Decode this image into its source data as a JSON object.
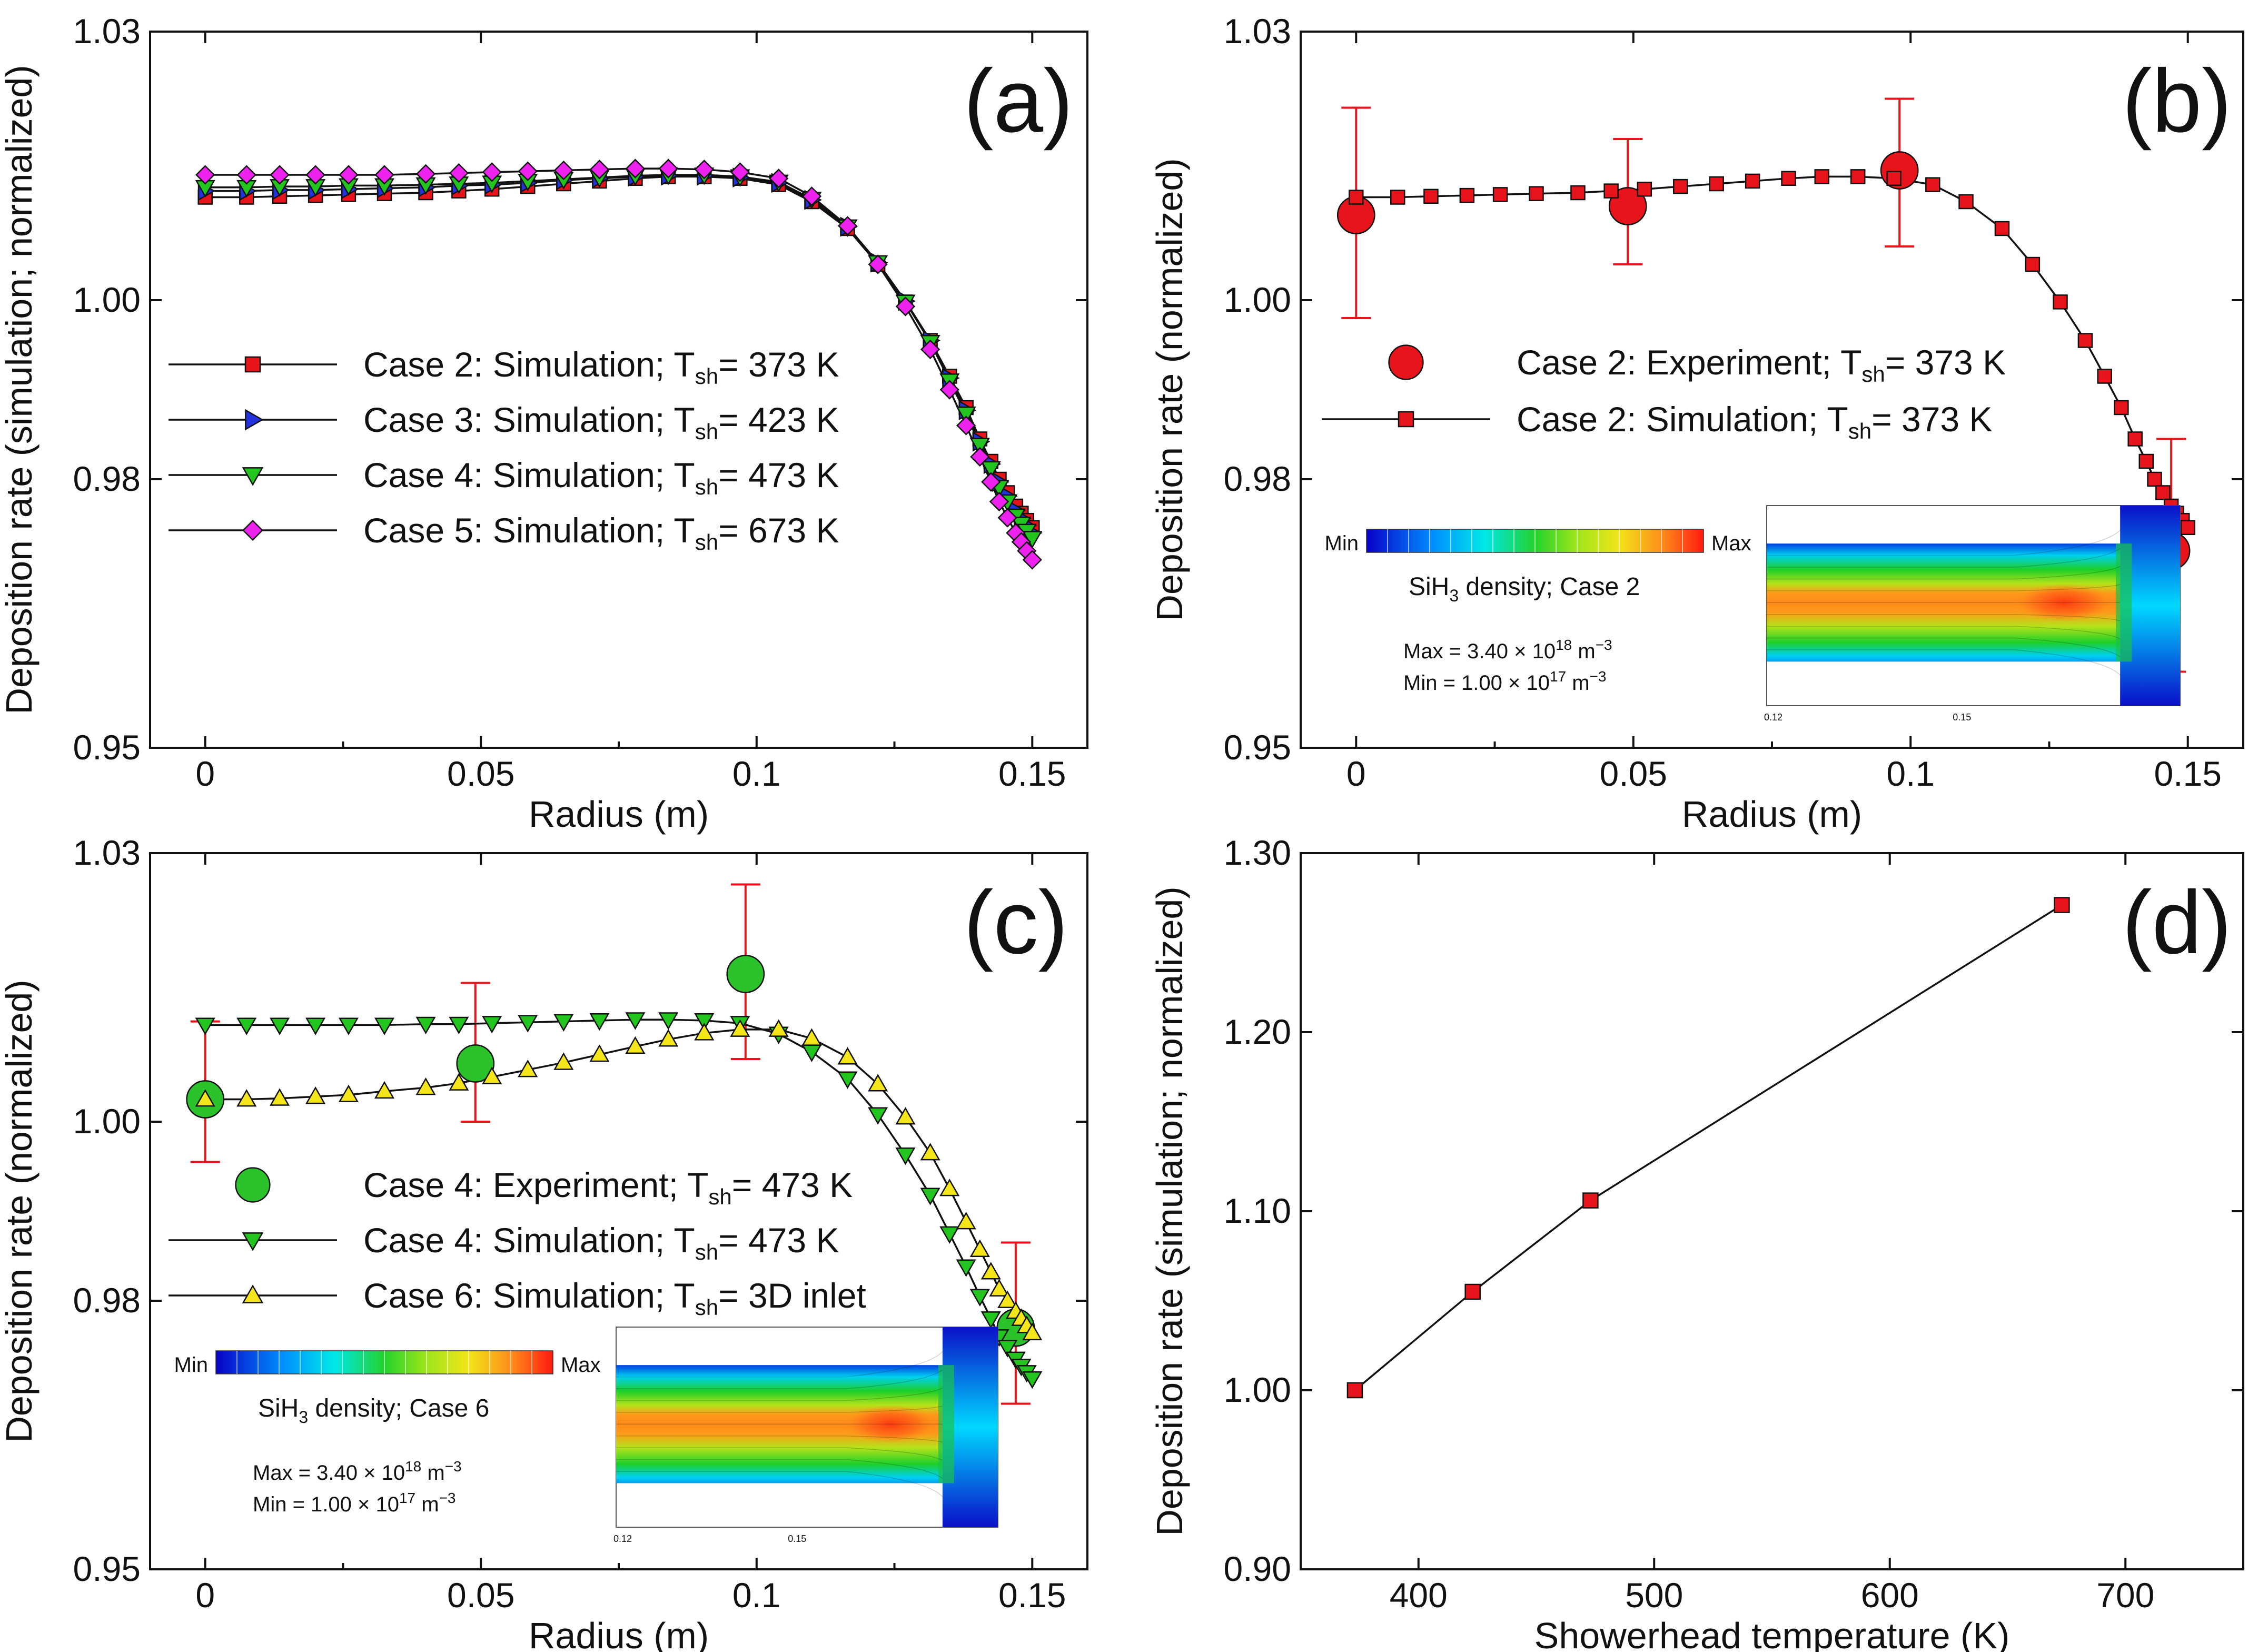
{
  "figure": {
    "panels": [
      {
        "id": "a",
        "label": "(a)",
        "ylabel": "Deposition rate (simulation; normalized)",
        "xlabel": "Radius (m)",
        "x_ticks": [
          "0",
          "0.05",
          "0.1",
          "0.15"
        ],
        "y_ticks": [
          "0.95",
          "0.98",
          "1.00",
          "1.03"
        ],
        "legend": [
          {
            "prefix": "Case 2: Simulation; T",
            "sub": "sh",
            "suffix": "= 373 K"
          },
          {
            "prefix": "Case 3: Simulation; T",
            "sub": "sh",
            "suffix": "= 423 K"
          },
          {
            "prefix": "Case 4: Simulation; T",
            "sub": "sh",
            "suffix": "= 473 K"
          },
          {
            "prefix": "Case 5: Simulation; T",
            "sub": "sh",
            "suffix": "= 673 K"
          }
        ]
      },
      {
        "id": "b",
        "label": "(b)",
        "ylabel": "Deposition rate (normalized)",
        "xlabel": "Radius (m)",
        "x_ticks": [
          "0",
          "0.05",
          "0.1",
          "0.15"
        ],
        "y_ticks": [
          "0.95",
          "0.98",
          "1.00",
          "1.03"
        ],
        "legend": [
          {
            "prefix": "Case 2: Experiment; T",
            "sub": "sh",
            "suffix": "= 373 K"
          },
          {
            "prefix": "Case 2: Simulation; T",
            "sub": "sh",
            "suffix": "= 373 K"
          }
        ],
        "inset": {
          "colorbar_min": "Min",
          "colorbar_max": "Max",
          "title_prefix": "SiH",
          "title_sub": "3",
          "title_suffix": " density; Case 2",
          "max_prefix": "Max = 3.40 × 10",
          "max_sup": "18",
          "max_suffix": " m",
          "max_unit_sup": "−3",
          "min_prefix": "Min = 1.00 × 10",
          "min_sup": "17",
          "min_suffix": " m",
          "min_unit_sup": "−3",
          "tick_left": "0.12",
          "tick_right": "0.15"
        }
      },
      {
        "id": "c",
        "label": "(c)",
        "ylabel": "Deposition rate (normalized)",
        "xlabel": "Radius (m)",
        "x_ticks": [
          "0",
          "0.05",
          "0.1",
          "0.15"
        ],
        "y_ticks": [
          "0.95",
          "0.98",
          "1.00",
          "1.03"
        ],
        "legend": [
          {
            "prefix": "Case 4: Experiment; T",
            "sub": "sh",
            "suffix": "= 473 K"
          },
          {
            "prefix": "Case 4: Simulation; T",
            "sub": "sh",
            "suffix": "= 473 K"
          },
          {
            "prefix": "Case 6: Simulation; T",
            "sub": "sh",
            "suffix": "= 3D inlet"
          }
        ],
        "inset": {
          "colorbar_min": "Min",
          "colorbar_max": "Max",
          "title_prefix": "SiH",
          "title_sub": "3",
          "title_suffix": " density; Case 6",
          "max_prefix": "Max = 3.40 × 10",
          "max_sup": "18",
          "max_suffix": " m",
          "max_unit_sup": "−3",
          "min_prefix": "Min = 1.00 × 10",
          "min_sup": "17",
          "min_suffix": " m",
          "min_unit_sup": "−3",
          "tick_left": "0.12",
          "tick_right": "0.15"
        }
      },
      {
        "id": "d",
        "label": "(d)",
        "ylabel": "Deposition rate (simulation; normalized)",
        "xlabel": "Showerhead temperature (K)",
        "x_ticks": [
          "400",
          "500",
          "600",
          "700"
        ],
        "y_ticks": [
          "0.90",
          "1.00",
          "1.10",
          "1.20",
          "1.30"
        ]
      }
    ],
    "colors": {
      "case2": "#e8141b",
      "case3": "#2233dd",
      "case4": "#22c41e",
      "case5": "#ee22ee",
      "case6": "#f5e61c",
      "exp": "#2bc22b",
      "errorbar": "#e8141b",
      "line": "#111111"
    }
  },
  "chart_data": [
    {
      "type": "line",
      "panel": "a",
      "xlim": [
        -0.01,
        0.16
      ],
      "ylim": [
        0.95,
        1.03
      ],
      "series": [
        {
          "name": "Case 2: Simulation; Tsh= 373 K",
          "marker": "square",
          "x": [
            0,
            0.0075,
            0.0135,
            0.02,
            0.026,
            0.0325,
            0.04,
            0.046,
            0.052,
            0.0585,
            0.065,
            0.0715,
            0.078,
            0.084,
            0.0905,
            0.097,
            0.104,
            0.11,
            0.1165,
            0.122,
            0.127,
            0.1315,
            0.135,
            0.138,
            0.1405,
            0.1425,
            0.144,
            0.1455,
            0.147,
            0.148,
            0.149,
            0.15
          ],
          "y": [
            1.0115,
            1.0115,
            1.0116,
            1.0117,
            1.0118,
            1.0119,
            1.012,
            1.0122,
            1.0124,
            1.0127,
            1.013,
            1.0133,
            1.0136,
            1.0138,
            1.0138,
            1.0136,
            1.0129,
            1.011,
            1.008,
            1.004,
            0.9998,
            0.9955,
            0.9915,
            0.988,
            0.9845,
            0.982,
            0.98,
            0.9785,
            0.977,
            0.9762,
            0.9754,
            0.9746
          ]
        },
        {
          "name": "Case 3: Simulation; Tsh= 423 K",
          "marker": "triangle-right",
          "x": [
            0,
            0.0075,
            0.0135,
            0.02,
            0.026,
            0.0325,
            0.04,
            0.046,
            0.052,
            0.0585,
            0.065,
            0.0715,
            0.078,
            0.084,
            0.0905,
            0.097,
            0.104,
            0.11,
            0.1165,
            0.122,
            0.127,
            0.1315,
            0.135,
            0.138,
            0.1405,
            0.1425,
            0.144,
            0.1455,
            0.147,
            0.148,
            0.149,
            0.15
          ],
          "y": [
            1.0122,
            1.0122,
            1.0123,
            1.0123,
            1.0124,
            1.0125,
            1.0126,
            1.0128,
            1.0129,
            1.0131,
            1.0134,
            1.0136,
            1.0138,
            1.0139,
            1.0139,
            1.0137,
            1.0131,
            1.0112,
            1.0082,
            1.0042,
            0.9999,
            0.9955,
            0.9913,
            0.9877,
            0.9842,
            0.9817,
            0.9797,
            0.9781,
            0.9765,
            0.9756,
            0.9748,
            0.974
          ]
        },
        {
          "name": "Case 4: Simulation; Tsh= 473 K",
          "marker": "triangle-down",
          "x": [
            0,
            0.0075,
            0.0135,
            0.02,
            0.026,
            0.0325,
            0.04,
            0.046,
            0.052,
            0.0585,
            0.065,
            0.0715,
            0.078,
            0.084,
            0.0905,
            0.097,
            0.104,
            0.11,
            0.1165,
            0.122,
            0.127,
            0.1315,
            0.135,
            0.138,
            0.1405,
            0.1425,
            0.144,
            0.1455,
            0.147,
            0.148,
            0.149,
            0.15
          ],
          "y": [
            1.0126,
            1.0126,
            1.0127,
            1.0127,
            1.0128,
            1.0128,
            1.0129,
            1.013,
            1.0131,
            1.0133,
            1.0135,
            1.0137,
            1.0139,
            1.014,
            1.014,
            1.0138,
            1.0132,
            1.0113,
            1.0082,
            1.0042,
            0.9998,
            0.9953,
            0.991,
            0.9873,
            0.9838,
            0.9812,
            0.9791,
            0.9775,
            0.9759,
            0.975,
            0.9742,
            0.9734
          ]
        },
        {
          "name": "Case 5: Simulation; Tsh= 673 K",
          "marker": "diamond",
          "x": [
            0,
            0.0075,
            0.0135,
            0.02,
            0.026,
            0.0325,
            0.04,
            0.046,
            0.052,
            0.0585,
            0.065,
            0.0715,
            0.078,
            0.084,
            0.0905,
            0.097,
            0.104,
            0.11,
            0.1165,
            0.122,
            0.127,
            0.1315,
            0.135,
            0.138,
            0.1405,
            0.1425,
            0.144,
            0.1455,
            0.147,
            0.148,
            0.149,
            0.15
          ],
          "y": [
            1.014,
            1.014,
            1.014,
            1.014,
            1.014,
            1.014,
            1.0141,
            1.0142,
            1.0143,
            1.0144,
            1.0145,
            1.0146,
            1.0147,
            1.0147,
            1.0146,
            1.0143,
            1.0136,
            1.0116,
            1.0083,
            1.004,
            0.9993,
            0.9945,
            0.99,
            0.986,
            0.9825,
            0.9797,
            0.9775,
            0.9757,
            0.974,
            0.973,
            0.972,
            0.971
          ]
        }
      ]
    },
    {
      "type": "line",
      "panel": "b",
      "xlim": [
        -0.01,
        0.16
      ],
      "ylim": [
        0.95,
        1.03
      ],
      "series": [
        {
          "name": "Case 2: Experiment; Tsh= 373 K",
          "marker": "circle",
          "x": [
            0,
            0.049,
            0.098,
            0.147
          ],
          "y": [
            1.0095,
            1.0105,
            1.0145,
            0.972
          ],
          "err_low": [
            0.998,
            1.004,
            1.006,
            0.9585
          ],
          "err_high": [
            1.0215,
            1.018,
            1.0225,
            0.9845
          ]
        },
        {
          "name": "Case 2: Simulation; Tsh= 373 K",
          "marker": "square",
          "x": [
            0,
            0.0075,
            0.0135,
            0.02,
            0.026,
            0.0325,
            0.04,
            0.046,
            0.052,
            0.0585,
            0.065,
            0.0715,
            0.078,
            0.084,
            0.0905,
            0.097,
            0.104,
            0.11,
            0.1165,
            0.122,
            0.127,
            0.1315,
            0.135,
            0.138,
            0.1405,
            0.1425,
            0.144,
            0.1455,
            0.147,
            0.148,
            0.149,
            0.15
          ],
          "y": [
            1.0115,
            1.0115,
            1.0116,
            1.0117,
            1.0118,
            1.0119,
            1.012,
            1.0122,
            1.0124,
            1.0127,
            1.013,
            1.0133,
            1.0136,
            1.0138,
            1.0138,
            1.0136,
            1.0129,
            1.011,
            1.008,
            1.004,
            0.9998,
            0.9955,
            0.9915,
            0.988,
            0.9845,
            0.982,
            0.98,
            0.9785,
            0.977,
            0.9762,
            0.9754,
            0.9746
          ]
        }
      ]
    },
    {
      "type": "line",
      "panel": "c",
      "xlim": [
        -0.01,
        0.16
      ],
      "ylim": [
        0.95,
        1.03
      ],
      "series": [
        {
          "name": "Case 4: Experiment; Tsh= 473 K",
          "marker": "circle",
          "x": [
            0,
            0.049,
            0.098,
            0.147
          ],
          "y": [
            1.0025,
            1.0065,
            1.0165,
            0.977
          ],
          "err_low": [
            0.9955,
            1.0,
            1.007,
            0.9685
          ],
          "err_high": [
            1.0112,
            1.0155,
            1.0265,
            0.9865
          ]
        },
        {
          "name": "Case 4: Simulation; Tsh= 473 K",
          "marker": "triangle-down",
          "x": [
            0,
            0.0075,
            0.0135,
            0.02,
            0.026,
            0.0325,
            0.04,
            0.046,
            0.052,
            0.0585,
            0.065,
            0.0715,
            0.078,
            0.084,
            0.0905,
            0.097,
            0.104,
            0.11,
            0.1165,
            0.122,
            0.127,
            0.1315,
            0.135,
            0.138,
            0.1405,
            0.1425,
            0.144,
            0.1455,
            0.147,
            0.148,
            0.149,
            0.15
          ],
          "y": [
            1.0108,
            1.0108,
            1.0108,
            1.0108,
            1.0108,
            1.0108,
            1.0109,
            1.0109,
            1.011,
            1.0111,
            1.0112,
            1.0113,
            1.0114,
            1.0114,
            1.0113,
            1.011,
            1.0098,
            1.0078,
            1.0048,
            1.0008,
            0.9963,
            0.9918,
            0.9875,
            0.9838,
            0.9805,
            0.978,
            0.976,
            0.9748,
            0.9735,
            0.9727,
            0.972,
            0.9713
          ]
        },
        {
          "name": "Case 6: Simulation; Tsh= 3D inlet",
          "marker": "triangle-up",
          "x": [
            0,
            0.0075,
            0.0135,
            0.02,
            0.026,
            0.0325,
            0.04,
            0.046,
            0.052,
            0.0585,
            0.065,
            0.0715,
            0.078,
            0.084,
            0.0905,
            0.097,
            0.104,
            0.11,
            0.1165,
            0.122,
            0.127,
            0.1315,
            0.135,
            0.138,
            0.1405,
            0.1425,
            0.144,
            0.1455,
            0.147,
            0.148,
            0.149,
            0.15
          ],
          "y": [
            1.0025,
            1.0025,
            1.0026,
            1.0028,
            1.003,
            1.0034,
            1.0038,
            1.0043,
            1.005,
            1.0058,
            1.0066,
            1.0075,
            1.0084,
            1.0092,
            1.0099,
            1.0103,
            1.0103,
            1.0093,
            1.0072,
            1.0042,
            1.0005,
            0.9965,
            0.9925,
            0.9888,
            0.9857,
            0.9832,
            0.9813,
            0.98,
            0.9788,
            0.978,
            0.9772,
            0.9764
          ]
        }
      ]
    },
    {
      "type": "line",
      "panel": "d",
      "xlim": [
        350,
        750
      ],
      "ylim": [
        0.9,
        1.3
      ],
      "series": [
        {
          "marker": "square",
          "x": [
            373,
            423,
            473,
            673
          ],
          "y": [
            1.0,
            1.055,
            1.106,
            1.271
          ]
        }
      ]
    }
  ]
}
